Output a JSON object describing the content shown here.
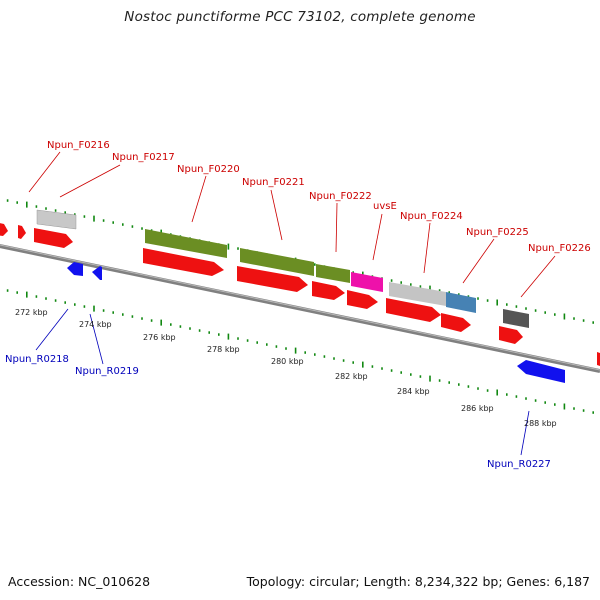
{
  "title": "Nostoc punctiforme PCC 73102, complete genome",
  "footer": {
    "accession": "Accession: NC_010628",
    "summary": "Topology: circular; Length: 8,234,322 bp; Genes: 6,187"
  },
  "colors": {
    "forward_label": "#cc0000",
    "reverse_label": "#0000bb",
    "cds_forward": "#ee1111",
    "cds_reverse": "#1111ee",
    "gene_green": "#6b8e23",
    "gene_magenta": "#ee11aa",
    "gene_gray": "#c0c0c0",
    "gene_steelblue": "#4682b4",
    "gene_darkgray": "#555555",
    "gc_ticks": "#118811",
    "backbone": "#808080"
  },
  "scale_labels": [
    "272 kbp",
    "274 kbp",
    "276 kbp",
    "278 kbp",
    "280 kbp",
    "282 kbp",
    "284 kbp",
    "286 kbp",
    "288 kbp"
  ],
  "forward_genes": [
    "Npun_F0216",
    "Npun_F0217",
    "Npun_F0220",
    "Npun_F0221",
    "Npun_F0222",
    "uvsE",
    "Npun_F0224",
    "Npun_F0225",
    "Npun_F0226"
  ],
  "reverse_genes": [
    "Npun_R0218",
    "Npun_R0219",
    "Npun_R0227"
  ]
}
